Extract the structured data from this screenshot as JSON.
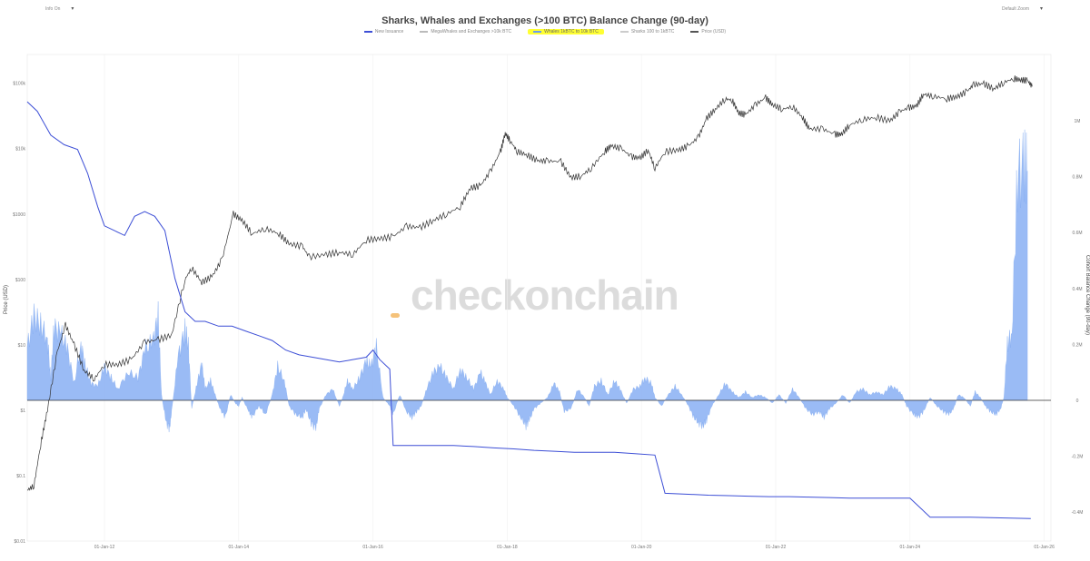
{
  "controls": {
    "left_label": "Info On",
    "right_label": "Default Zoom"
  },
  "chart_data": {
    "type": "area",
    "title": "Sharks, Whales and Exchanges (>100 BTC) Balance Change (90-day)",
    "legend": [
      {
        "name": "New Issuance",
        "color": "#3d4fd6",
        "highlight": false
      },
      {
        "name": "MegaWhales and Exchanges >10k BTC",
        "color": "#bbbbbb",
        "highlight": false
      },
      {
        "name": "Whales 1kBTC to 10k BTC",
        "color": "#6a9cf0",
        "highlight": true
      },
      {
        "name": "Sharks 100 to 1kBTC",
        "color": "#cccccc",
        "highlight": false
      },
      {
        "name": "Price (USD)",
        "color": "#555555",
        "highlight": false
      }
    ],
    "ylabel_left": "Price (USD)",
    "ylabel_right": "Cohort Balance Change (90-day)",
    "y_left_scale": "log",
    "y_left_ticks": [
      "$100k",
      "$10k",
      "$1000",
      "$100",
      "$10",
      "$1",
      "$0.1",
      "$0.01"
    ],
    "y_left_tick_values": [
      100000,
      10000,
      1000,
      100,
      10,
      1,
      0.1,
      0.01
    ],
    "y_right_ticks": [
      "1M",
      "0.8M",
      "0.6M",
      "0.4M",
      "0.2M",
      "0",
      "-0.2M",
      "-0.4M"
    ],
    "y_right_tick_values": [
      1000000,
      800000,
      600000,
      400000,
      200000,
      0,
      -200000,
      -400000
    ],
    "x_ticks": [
      "01-Jan-12",
      "01-Jan-14",
      "01-Jan-16",
      "01-Jan-18",
      "01-Jan-20",
      "01-Jan-22",
      "01-Jan-24",
      "01-Jan-26"
    ],
    "x_tick_years": [
      2012,
      2014,
      2016,
      2018,
      2020,
      2022,
      2024,
      2026
    ],
    "x_range": [
      2010.85,
      2026.1
    ],
    "whales_balance_change": [
      [
        2010.85,
        190000
      ],
      [
        2010.95,
        300000
      ],
      [
        2011.05,
        270000
      ],
      [
        2011.15,
        220000
      ],
      [
        2011.2,
        80000
      ],
      [
        2011.25,
        260000
      ],
      [
        2011.35,
        240000
      ],
      [
        2011.45,
        180000
      ],
      [
        2011.55,
        60000
      ],
      [
        2011.65,
        200000
      ],
      [
        2011.72,
        120000
      ],
      [
        2011.8,
        60000
      ],
      [
        2011.9,
        50000
      ],
      [
        2012.0,
        120000
      ],
      [
        2012.1,
        80000
      ],
      [
        2012.2,
        40000
      ],
      [
        2012.35,
        100000
      ],
      [
        2012.5,
        80000
      ],
      [
        2012.6,
        180000
      ],
      [
        2012.72,
        210000
      ],
      [
        2012.8,
        300000
      ],
      [
        2012.85,
        20000
      ],
      [
        2012.92,
        -80000
      ],
      [
        2012.97,
        -100000
      ],
      [
        2013.0,
        -40000
      ],
      [
        2013.1,
        160000
      ],
      [
        2013.2,
        250000
      ],
      [
        2013.25,
        200000
      ],
      [
        2013.3,
        -30000
      ],
      [
        2013.38,
        60000
      ],
      [
        2013.45,
        130000
      ],
      [
        2013.5,
        40000
      ],
      [
        2013.58,
        70000
      ],
      [
        2013.65,
        20000
      ],
      [
        2013.72,
        -30000
      ],
      [
        2013.8,
        -60000
      ],
      [
        2013.88,
        20000
      ],
      [
        2013.95,
        -10000
      ],
      [
        2014.0,
        -20000
      ],
      [
        2014.05,
        10000
      ],
      [
        2014.15,
        -40000
      ],
      [
        2014.2,
        -60000
      ],
      [
        2014.3,
        -20000
      ],
      [
        2014.4,
        -50000
      ],
      [
        2014.5,
        20000
      ],
      [
        2014.58,
        120000
      ],
      [
        2014.68,
        70000
      ],
      [
        2014.75,
        -20000
      ],
      [
        2014.85,
        -50000
      ],
      [
        2014.95,
        -60000
      ],
      [
        2015.0,
        -30000
      ],
      [
        2015.08,
        -80000
      ],
      [
        2015.15,
        -100000
      ],
      [
        2015.2,
        -30000
      ],
      [
        2015.3,
        20000
      ],
      [
        2015.4,
        40000
      ],
      [
        2015.5,
        -20000
      ],
      [
        2015.55,
        10000
      ],
      [
        2015.62,
        70000
      ],
      [
        2015.7,
        40000
      ],
      [
        2015.8,
        80000
      ],
      [
        2015.9,
        140000
      ],
      [
        2015.97,
        120000
      ],
      [
        2016.05,
        190000
      ],
      [
        2016.15,
        10000
      ],
      [
        2016.25,
        -20000
      ],
      [
        2016.3,
        -50000
      ],
      [
        2016.4,
        20000
      ],
      [
        2016.5,
        -40000
      ],
      [
        2016.58,
        -60000
      ],
      [
        2016.65,
        -40000
      ],
      [
        2016.72,
        -20000
      ],
      [
        2016.8,
        40000
      ],
      [
        2016.9,
        100000
      ],
      [
        2017.0,
        120000
      ],
      [
        2017.1,
        80000
      ],
      [
        2017.2,
        40000
      ],
      [
        2017.3,
        110000
      ],
      [
        2017.4,
        80000
      ],
      [
        2017.5,
        40000
      ],
      [
        2017.6,
        100000
      ],
      [
        2017.68,
        60000
      ],
      [
        2017.75,
        20000
      ],
      [
        2017.85,
        70000
      ],
      [
        2017.95,
        40000
      ],
      [
        2018.0,
        10000
      ],
      [
        2018.1,
        -20000
      ],
      [
        2018.2,
        -60000
      ],
      [
        2018.28,
        -90000
      ],
      [
        2018.33,
        -70000
      ],
      [
        2018.4,
        -30000
      ],
      [
        2018.5,
        -10000
      ],
      [
        2018.6,
        10000
      ],
      [
        2018.7,
        60000
      ],
      [
        2018.78,
        30000
      ],
      [
        2018.85,
        -40000
      ],
      [
        2018.95,
        -30000
      ],
      [
        2019.05,
        40000
      ],
      [
        2019.15,
        10000
      ],
      [
        2019.22,
        -20000
      ],
      [
        2019.3,
        50000
      ],
      [
        2019.4,
        70000
      ],
      [
        2019.5,
        20000
      ],
      [
        2019.6,
        70000
      ],
      [
        2019.68,
        40000
      ],
      [
        2019.78,
        -10000
      ],
      [
        2019.88,
        40000
      ],
      [
        2019.98,
        50000
      ],
      [
        2020.05,
        80000
      ],
      [
        2020.15,
        60000
      ],
      [
        2020.2,
        10000
      ],
      [
        2020.3,
        -20000
      ],
      [
        2020.4,
        20000
      ],
      [
        2020.5,
        50000
      ],
      [
        2020.6,
        20000
      ],
      [
        2020.7,
        -20000
      ],
      [
        2020.78,
        -60000
      ],
      [
        2020.85,
        -80000
      ],
      [
        2020.92,
        -90000
      ],
      [
        2020.97,
        -70000
      ],
      [
        2021.05,
        -20000
      ],
      [
        2021.15,
        20000
      ],
      [
        2021.25,
        60000
      ],
      [
        2021.35,
        30000
      ],
      [
        2021.45,
        10000
      ],
      [
        2021.55,
        30000
      ],
      [
        2021.65,
        10000
      ],
      [
        2021.75,
        20000
      ],
      [
        2021.85,
        10000
      ],
      [
        2021.95,
        -10000
      ],
      [
        2022.05,
        20000
      ],
      [
        2022.15,
        -10000
      ],
      [
        2022.25,
        40000
      ],
      [
        2022.35,
        10000
      ],
      [
        2022.45,
        -30000
      ],
      [
        2022.55,
        -50000
      ],
      [
        2022.65,
        -40000
      ],
      [
        2022.72,
        -60000
      ],
      [
        2022.8,
        -30000
      ],
      [
        2022.9,
        -10000
      ],
      [
        2023.0,
        20000
      ],
      [
        2023.1,
        -10000
      ],
      [
        2023.2,
        30000
      ],
      [
        2023.3,
        40000
      ],
      [
        2023.4,
        20000
      ],
      [
        2023.5,
        30000
      ],
      [
        2023.6,
        20000
      ],
      [
        2023.7,
        50000
      ],
      [
        2023.8,
        40000
      ],
      [
        2023.88,
        20000
      ],
      [
        2023.95,
        -20000
      ],
      [
        2024.05,
        -50000
      ],
      [
        2024.12,
        -60000
      ],
      [
        2024.2,
        -40000
      ],
      [
        2024.3,
        10000
      ],
      [
        2024.4,
        -20000
      ],
      [
        2024.5,
        -40000
      ],
      [
        2024.58,
        -50000
      ],
      [
        2024.65,
        -30000
      ],
      [
        2024.72,
        20000
      ],
      [
        2024.8,
        10000
      ],
      [
        2024.9,
        -20000
      ],
      [
        2024.97,
        30000
      ],
      [
        2025.05,
        10000
      ],
      [
        2025.12,
        -20000
      ],
      [
        2025.2,
        -40000
      ],
      [
        2025.28,
        -50000
      ],
      [
        2025.35,
        -30000
      ],
      [
        2025.4,
        10000
      ],
      [
        2025.45,
        200000
      ],
      [
        2025.52,
        240000
      ],
      [
        2025.6,
        800000
      ],
      [
        2025.7,
        840000
      ],
      [
        2025.75,
        820000
      ]
    ],
    "new_issuance": [
      [
        2010.85,
        0.92
      ],
      [
        2011.0,
        0.9
      ],
      [
        2011.2,
        0.85
      ],
      [
        2011.4,
        0.83
      ],
      [
        2011.6,
        0.82
      ],
      [
        2011.75,
        0.77
      ],
      [
        2011.9,
        0.7
      ],
      [
        2012.0,
        0.66
      ],
      [
        2012.15,
        0.65
      ],
      [
        2012.3,
        0.64
      ],
      [
        2012.45,
        0.68
      ],
      [
        2012.6,
        0.69
      ],
      [
        2012.75,
        0.68
      ],
      [
        2012.9,
        0.65
      ],
      [
        2013.05,
        0.55
      ],
      [
        2013.2,
        0.48
      ],
      [
        2013.35,
        0.46
      ],
      [
        2013.5,
        0.46
      ],
      [
        2013.7,
        0.45
      ],
      [
        2013.9,
        0.45
      ],
      [
        2014.1,
        0.44
      ],
      [
        2014.3,
        0.43
      ],
      [
        2014.5,
        0.42
      ],
      [
        2014.7,
        0.4
      ],
      [
        2014.9,
        0.39
      ],
      [
        2015.1,
        0.385
      ],
      [
        2015.3,
        0.38
      ],
      [
        2015.5,
        0.375
      ],
      [
        2015.7,
        0.38
      ],
      [
        2015.9,
        0.385
      ],
      [
        2016.0,
        0.4
      ],
      [
        2016.1,
        0.38
      ],
      [
        2016.25,
        0.36
      ],
      [
        2016.3,
        0.2
      ],
      [
        2016.6,
        0.2
      ],
      [
        2016.9,
        0.2
      ],
      [
        2017.2,
        0.2
      ],
      [
        2017.5,
        0.198
      ],
      [
        2017.8,
        0.195
      ],
      [
        2018.1,
        0.193
      ],
      [
        2018.4,
        0.19
      ],
      [
        2018.7,
        0.188
      ],
      [
        2019.0,
        0.186
      ],
      [
        2019.3,
        0.186
      ],
      [
        2019.6,
        0.186
      ],
      [
        2019.9,
        0.183
      ],
      [
        2020.2,
        0.18
      ],
      [
        2020.35,
        0.1
      ],
      [
        2020.7,
        0.098
      ],
      [
        2021.0,
        0.096
      ],
      [
        2021.3,
        0.095
      ],
      [
        2021.6,
        0.094
      ],
      [
        2021.9,
        0.093
      ],
      [
        2022.2,
        0.093
      ],
      [
        2022.5,
        0.092
      ],
      [
        2022.8,
        0.091
      ],
      [
        2023.1,
        0.09
      ],
      [
        2023.4,
        0.09
      ],
      [
        2023.7,
        0.09
      ],
      [
        2024.0,
        0.09
      ],
      [
        2024.3,
        0.05
      ],
      [
        2024.6,
        0.05
      ],
      [
        2024.9,
        0.05
      ],
      [
        2025.2,
        0.049
      ],
      [
        2025.5,
        0.048
      ],
      [
        2025.8,
        0.047
      ]
    ],
    "price_usd": [
      [
        2010.85,
        0.06
      ],
      [
        2010.95,
        0.07
      ],
      [
        2011.05,
        0.3
      ],
      [
        2011.15,
        1
      ],
      [
        2011.3,
        8
      ],
      [
        2011.42,
        20
      ],
      [
        2011.55,
        10
      ],
      [
        2011.7,
        4
      ],
      [
        2011.85,
        3
      ],
      [
        2012.0,
        5
      ],
      [
        2012.2,
        5
      ],
      [
        2012.4,
        6
      ],
      [
        2012.6,
        11
      ],
      [
        2012.8,
        12
      ],
      [
        2013.0,
        14
      ],
      [
        2013.2,
        100
      ],
      [
        2013.3,
        150
      ],
      [
        2013.45,
        90
      ],
      [
        2013.6,
        110
      ],
      [
        2013.75,
        200
      ],
      [
        2013.92,
        1000
      ],
      [
        2014.05,
        800
      ],
      [
        2014.2,
        500
      ],
      [
        2014.4,
        600
      ],
      [
        2014.6,
        500
      ],
      [
        2014.75,
        350
      ],
      [
        2014.95,
        320
      ],
      [
        2015.05,
        220
      ],
      [
        2015.3,
        240
      ],
      [
        2015.5,
        260
      ],
      [
        2015.7,
        240
      ],
      [
        2015.9,
        400
      ],
      [
        2016.1,
        420
      ],
      [
        2016.3,
        450
      ],
      [
        2016.5,
        650
      ],
      [
        2016.7,
        620
      ],
      [
        2016.9,
        800
      ],
      [
        2017.1,
        1000
      ],
      [
        2017.3,
        1300
      ],
      [
        2017.45,
        2500
      ],
      [
        2017.6,
        2700
      ],
      [
        2017.75,
        4500
      ],
      [
        2017.9,
        9000
      ],
      [
        2017.97,
        17000
      ],
      [
        2018.05,
        13000
      ],
      [
        2018.15,
        9000
      ],
      [
        2018.3,
        8000
      ],
      [
        2018.45,
        6500
      ],
      [
        2018.6,
        6500
      ],
      [
        2018.8,
        6300
      ],
      [
        2018.95,
        3600
      ],
      [
        2019.1,
        3800
      ],
      [
        2019.25,
        5000
      ],
      [
        2019.45,
        9000
      ],
      [
        2019.55,
        11000
      ],
      [
        2019.7,
        10000
      ],
      [
        2019.85,
        7500
      ],
      [
        2019.98,
        7200
      ],
      [
        2020.1,
        9500
      ],
      [
        2020.2,
        5000
      ],
      [
        2020.35,
        9000
      ],
      [
        2020.55,
        9500
      ],
      [
        2020.7,
        11000
      ],
      [
        2020.85,
        15000
      ],
      [
        2020.97,
        29000
      ],
      [
        2021.1,
        40000
      ],
      [
        2021.25,
        58000
      ],
      [
        2021.35,
        55000
      ],
      [
        2021.45,
        35000
      ],
      [
        2021.55,
        33000
      ],
      [
        2021.7,
        47000
      ],
      [
        2021.85,
        60000
      ],
      [
        2021.95,
        47000
      ],
      [
        2022.1,
        40000
      ],
      [
        2022.25,
        44000
      ],
      [
        2022.4,
        30000
      ],
      [
        2022.5,
        20000
      ],
      [
        2022.7,
        20000
      ],
      [
        2022.88,
        16500
      ],
      [
        2022.98,
        16500
      ],
      [
        2023.1,
        23000
      ],
      [
        2023.3,
        28000
      ],
      [
        2023.5,
        30000
      ],
      [
        2023.7,
        26500
      ],
      [
        2023.85,
        37000
      ],
      [
        2023.98,
        42000
      ],
      [
        2024.1,
        45000
      ],
      [
        2024.2,
        68000
      ],
      [
        2024.35,
        63000
      ],
      [
        2024.55,
        58000
      ],
      [
        2024.7,
        62000
      ],
      [
        2024.85,
        75000
      ],
      [
        2024.95,
        95000
      ],
      [
        2025.1,
        98000
      ],
      [
        2025.25,
        82000
      ],
      [
        2025.4,
        103000
      ],
      [
        2025.55,
        118000
      ],
      [
        2025.65,
        112000
      ],
      [
        2025.75,
        110000
      ],
      [
        2025.82,
        89000
      ]
    ],
    "grid": true,
    "legend_placement": "top-center"
  }
}
